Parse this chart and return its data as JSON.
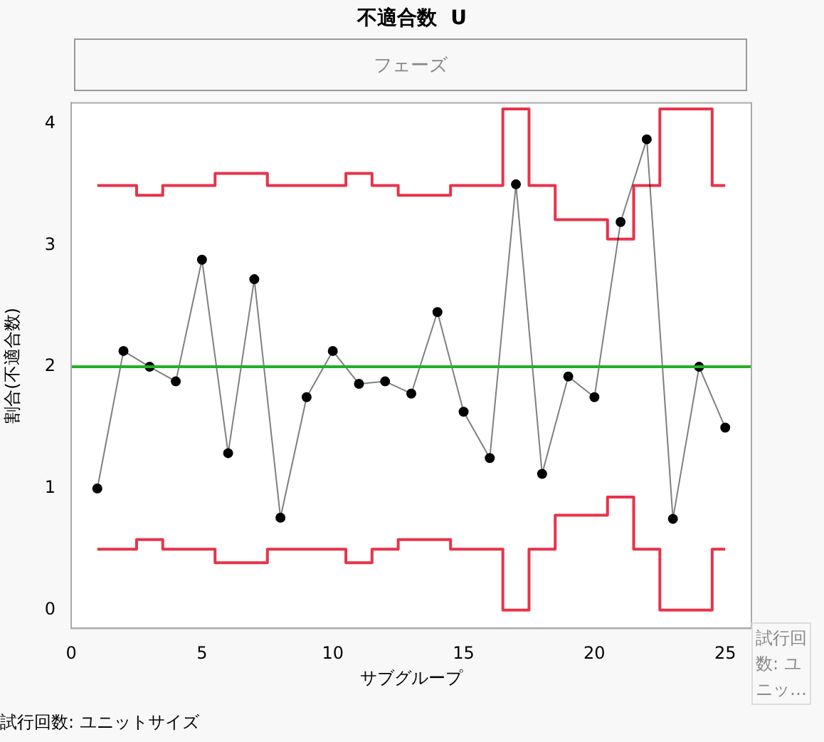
{
  "chart_data": {
    "type": "line",
    "title": "不適合数  U",
    "xlabel": "サブグループ",
    "ylabel": "割合(不適合数)",
    "annotations": [
      "フェーズ",
      "試行回数: ユニッ…",
      "試行回数: ユニットサイズ"
    ],
    "x": [
      1,
      2,
      3,
      4,
      5,
      6,
      7,
      8,
      9,
      10,
      11,
      12,
      13,
      14,
      15,
      16,
      17,
      18,
      19,
      20,
      21,
      22,
      23,
      24,
      25
    ],
    "series": [
      {
        "color": "#000000",
        "marker": "circle",
        "values": [
          1.0,
          2.13,
          2.0,
          1.88,
          2.88,
          1.29,
          2.72,
          0.76,
          1.75,
          2.13,
          1.86,
          1.88,
          1.78,
          2.45,
          1.63,
          1.25,
          3.5,
          1.12,
          1.92,
          1.75,
          3.19,
          3.87,
          0.75,
          2.0,
          1.5
        ]
      },
      {
        "type": "step",
        "color": "#e8334a",
        "values": [
          3.49,
          3.49,
          3.41,
          3.49,
          3.49,
          3.59,
          3.59,
          3.49,
          3.49,
          3.49,
          3.59,
          3.49,
          3.41,
          3.41,
          3.49,
          3.49,
          4.12,
          3.49,
          3.21,
          3.21,
          3.05,
          3.49,
          4.12,
          4.12,
          3.49
        ]
      },
      {
        "type": "step",
        "color": "#e8334a",
        "values": [
          0.5,
          0.5,
          0.58,
          0.5,
          0.5,
          0.39,
          0.39,
          0.5,
          0.5,
          0.5,
          0.39,
          0.5,
          0.58,
          0.58,
          0.5,
          0.5,
          0,
          0.5,
          0.78,
          0.78,
          0.93,
          0.5,
          0,
          0,
          0.5
        ]
      }
    ],
    "ref_lines": [
      {
        "axis": "y",
        "value": 2,
        "color": "#22b022"
      }
    ],
    "xlim": [
      0,
      26
    ],
    "xticks": [
      0,
      5,
      10,
      15,
      20,
      25
    ],
    "ylim": [
      -0.15,
      4.17
    ],
    "yticks": [
      0,
      1,
      2,
      3,
      4
    ],
    "grid": false,
    "legend": false
  }
}
